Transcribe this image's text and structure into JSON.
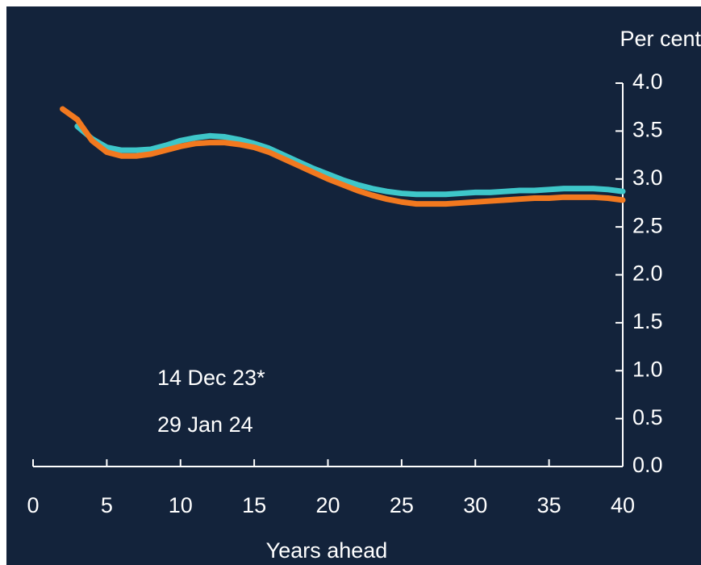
{
  "chart_data": {
    "type": "line",
    "y_label": "Per cent",
    "x_label": "Years ahead",
    "x": [
      2,
      3,
      4,
      5,
      6,
      7,
      8,
      9,
      10,
      11,
      12,
      13,
      14,
      15,
      16,
      17,
      18,
      19,
      20,
      21,
      22,
      23,
      24,
      25,
      26,
      27,
      28,
      29,
      30,
      31,
      32,
      33,
      34,
      35,
      36,
      37,
      38,
      39,
      40
    ],
    "series": [
      {
        "name": "14 Dec 23*",
        "color": "#3ec6c9",
        "values": [
          null,
          3.55,
          3.42,
          3.33,
          3.3,
          3.3,
          3.31,
          3.35,
          3.4,
          3.43,
          3.45,
          3.44,
          3.41,
          3.37,
          3.32,
          3.25,
          3.18,
          3.11,
          3.05,
          2.99,
          2.94,
          2.9,
          2.87,
          2.85,
          2.84,
          2.84,
          2.84,
          2.85,
          2.86,
          2.86,
          2.87,
          2.88,
          2.88,
          2.89,
          2.9,
          2.9,
          2.9,
          2.89,
          2.87
        ]
      },
      {
        "name": "29 Jan 24",
        "color": "#f2791f",
        "values": [
          3.73,
          3.62,
          3.4,
          3.28,
          3.24,
          3.24,
          3.26,
          3.3,
          3.34,
          3.37,
          3.38,
          3.38,
          3.36,
          3.33,
          3.28,
          3.21,
          3.14,
          3.07,
          3.0,
          2.94,
          2.88,
          2.83,
          2.79,
          2.76,
          2.74,
          2.74,
          2.74,
          2.75,
          2.76,
          2.77,
          2.78,
          2.79,
          2.8,
          2.8,
          2.81,
          2.81,
          2.81,
          2.8,
          2.78
        ]
      }
    ],
    "xlim": [
      0,
      40
    ],
    "xticks": [
      0,
      5,
      10,
      15,
      20,
      25,
      30,
      35,
      40
    ],
    "ylim": [
      0,
      4
    ],
    "yticks": [
      {
        "value": 0,
        "label": "0.0"
      },
      {
        "value": 0.5,
        "label": "0.5"
      },
      {
        "value": 1,
        "label": "1.0"
      },
      {
        "value": 1.5,
        "label": "1.5"
      },
      {
        "value": 2,
        "label": "2.0"
      },
      {
        "value": 2.5,
        "label": "2.5"
      },
      {
        "value": 3,
        "label": "3.0"
      },
      {
        "value": 3.5,
        "label": "3.5"
      },
      {
        "value": 4,
        "label": "4.0"
      }
    ]
  }
}
